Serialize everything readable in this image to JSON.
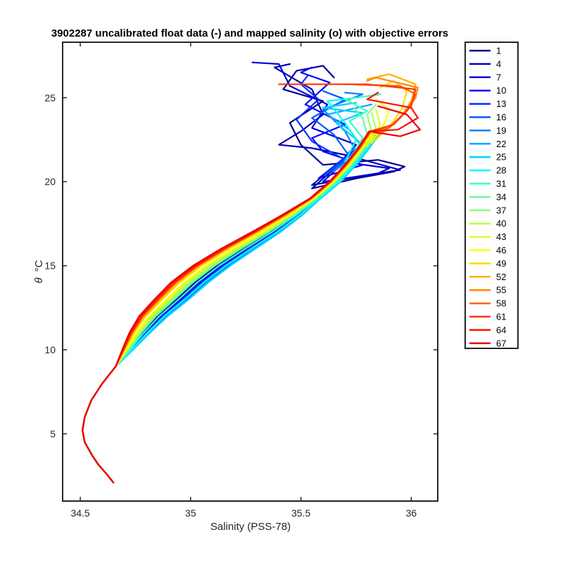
{
  "chart_data": {
    "type": "line",
    "title": "3902287 uncalibrated float data (-) and mapped salinity (o) with objective errors",
    "xlabel": "Salinity (PSS-78)",
    "ylabel_symbol": "θ",
    "ylabel_unit": "°C",
    "xlim": [
      34.42,
      36.12
    ],
    "ylim": [
      1.0,
      28.3
    ],
    "xticks": [
      34.5,
      35,
      35.5,
      36
    ],
    "xtick_labels": [
      "34.5",
      "35",
      "35.5",
      "36"
    ],
    "yticks": [
      5,
      10,
      15,
      20,
      25
    ],
    "ytick_labels": [
      "5",
      "10",
      "15",
      "20",
      "25"
    ],
    "grid": false,
    "legend_position": "outside-right",
    "legend": [
      "1",
      "4",
      "7",
      "10",
      "13",
      "16",
      "19",
      "22",
      "25",
      "28",
      "31",
      "34",
      "37",
      "40",
      "43",
      "46",
      "49",
      "52",
      "55",
      "58",
      "61",
      "64",
      "67"
    ],
    "colors": [
      "#00008f",
      "#0000b3",
      "#0000db",
      "#0005ff",
      "#0030ff",
      "#0058ff",
      "#0080ff",
      "#00a8ff",
      "#00d0ff",
      "#0ff8f8",
      "#38ffc8",
      "#60ff9f",
      "#88ff78",
      "#b0ff50",
      "#d8ff28",
      "#ffff00",
      "#ffd800",
      "#ffb000",
      "#ff8800",
      "#ff6000",
      "#ff3800",
      "#ff1000",
      "#ea0000"
    ],
    "common_profile": [
      [
        34.65,
        2.1
      ],
      [
        34.62,
        2.6
      ],
      [
        34.58,
        3.2
      ],
      [
        34.55,
        3.8
      ],
      [
        34.52,
        4.5
      ],
      [
        34.51,
        5.2
      ],
      [
        34.52,
        6.0
      ],
      [
        34.55,
        7.0
      ],
      [
        34.6,
        8.0
      ],
      [
        34.66,
        9.0
      ],
      [
        34.71,
        10.0
      ],
      [
        34.76,
        11.0
      ],
      [
        34.82,
        12.0
      ],
      [
        34.9,
        13.0
      ],
      [
        34.98,
        14.0
      ],
      [
        35.08,
        15.0
      ],
      [
        35.2,
        16.0
      ],
      [
        35.33,
        17.0
      ],
      [
        35.45,
        18.0
      ],
      [
        35.56,
        19.0
      ],
      [
        35.65,
        20.0
      ],
      [
        35.72,
        21.0
      ],
      [
        35.78,
        22.0
      ],
      [
        35.83,
        23.0
      ]
    ],
    "series": [
      {
        "name": "1",
        "thermocline_offset": 0.04,
        "top": [
          [
            35.55,
            19.6
          ],
          [
            35.75,
            20.2
          ],
          [
            35.92,
            20.6
          ],
          [
            35.97,
            20.9
          ],
          [
            35.85,
            21.3
          ],
          [
            35.6,
            21.0
          ],
          [
            35.5,
            22.2
          ],
          [
            35.45,
            23.5
          ],
          [
            35.6,
            24.8
          ],
          [
            35.42,
            25.5
          ],
          [
            35.48,
            26.6
          ],
          [
            35.6,
            26.9
          ],
          [
            35.65,
            26.2
          ]
        ]
      },
      {
        "name": "4",
        "thermocline_offset": 0.05,
        "top": [
          [
            35.55,
            19.8
          ],
          [
            35.8,
            20.4
          ],
          [
            35.95,
            20.7
          ],
          [
            35.7,
            21.6
          ],
          [
            35.55,
            22.0
          ],
          [
            35.4,
            22.2
          ],
          [
            35.5,
            23.0
          ],
          [
            35.6,
            24.0
          ],
          [
            35.55,
            25.5
          ],
          [
            35.38,
            26.8
          ],
          [
            35.45,
            27.0
          ]
        ]
      },
      {
        "name": "7",
        "thermocline_offset": 0.05,
        "top": [
          [
            35.6,
            20.0
          ],
          [
            35.85,
            20.5
          ],
          [
            35.9,
            20.8
          ],
          [
            35.68,
            21.2
          ],
          [
            35.75,
            22.2
          ],
          [
            35.55,
            23.2
          ],
          [
            35.62,
            24.6
          ],
          [
            35.45,
            25.7
          ],
          [
            35.4,
            27.0
          ],
          [
            35.28,
            27.1
          ]
        ]
      },
      {
        "name": "10",
        "thermocline_offset": 0.06,
        "top": [
          [
            35.58,
            20.2
          ],
          [
            35.78,
            21.0
          ],
          [
            35.6,
            21.8
          ],
          [
            35.55,
            22.6
          ],
          [
            35.7,
            23.4
          ],
          [
            35.52,
            24.6
          ],
          [
            35.63,
            25.9
          ],
          [
            35.5,
            26.5
          ],
          [
            35.55,
            26.8
          ]
        ]
      },
      {
        "name": "13",
        "thermocline_offset": 0.07,
        "top": [
          [
            35.6,
            20.4
          ],
          [
            35.7,
            21.3
          ],
          [
            35.55,
            22.4
          ],
          [
            35.48,
            23.7
          ],
          [
            35.58,
            24.9
          ],
          [
            35.5,
            25.8
          ],
          [
            35.53,
            26.3
          ]
        ]
      },
      {
        "name": "16",
        "thermocline_offset": 0.08,
        "top": [
          [
            35.62,
            20.5
          ],
          [
            35.72,
            21.5
          ],
          [
            35.65,
            22.8
          ],
          [
            35.55,
            23.8
          ],
          [
            35.7,
            24.9
          ],
          [
            35.6,
            25.4
          ]
        ]
      },
      {
        "name": "19",
        "thermocline_offset": 0.09,
        "top": [
          [
            35.65,
            20.6
          ],
          [
            35.75,
            21.8
          ],
          [
            35.7,
            23.0
          ],
          [
            35.6,
            24.3
          ],
          [
            35.78,
            25.2
          ],
          [
            35.7,
            25.3
          ]
        ]
      },
      {
        "name": "22",
        "thermocline_offset": 0.1,
        "top": [
          [
            35.68,
            20.8
          ],
          [
            35.78,
            22.0
          ],
          [
            35.72,
            23.1
          ],
          [
            35.62,
            24.0
          ],
          [
            35.82,
            24.6
          ]
        ]
      },
      {
        "name": "25",
        "thermocline_offset": 0.1,
        "top": [
          [
            35.7,
            21.0
          ],
          [
            35.77,
            22.3
          ],
          [
            35.66,
            23.5
          ],
          [
            35.78,
            24.1
          ],
          [
            35.6,
            24.4
          ],
          [
            35.75,
            24.7
          ]
        ]
      },
      {
        "name": "28",
        "thermocline_offset": 0.08,
        "top": [
          [
            35.7,
            21.2
          ],
          [
            35.75,
            22.5
          ],
          [
            35.7,
            23.5
          ],
          [
            35.62,
            24.8
          ],
          [
            35.75,
            25.0
          ]
        ]
      },
      {
        "name": "31",
        "thermocline_offset": 0.05,
        "top": [
          [
            35.72,
            21.3
          ],
          [
            35.78,
            22.6
          ],
          [
            35.72,
            23.6
          ],
          [
            35.8,
            24.2
          ],
          [
            35.7,
            24.9
          ],
          [
            35.86,
            25.2
          ]
        ]
      },
      {
        "name": "34",
        "thermocline_offset": 0.03,
        "top": [
          [
            35.74,
            21.5
          ],
          [
            35.8,
            22.8
          ],
          [
            35.78,
            23.8
          ],
          [
            35.74,
            24.4
          ]
        ]
      },
      {
        "name": "37",
        "thermocline_offset": 0.02,
        "top": [
          [
            35.75,
            21.7
          ],
          [
            35.82,
            23.0
          ],
          [
            35.8,
            24.0
          ],
          [
            35.84,
            24.6
          ]
        ]
      },
      {
        "name": "40",
        "thermocline_offset": 0.01,
        "top": [
          [
            35.77,
            21.9
          ],
          [
            35.84,
            23.2
          ],
          [
            35.82,
            24.1
          ]
        ]
      },
      {
        "name": "43",
        "thermocline_offset": 0.0,
        "top": [
          [
            35.8,
            22.1
          ],
          [
            35.86,
            23.4
          ],
          [
            35.84,
            24.3
          ]
        ]
      },
      {
        "name": "46",
        "thermocline_offset": -0.01,
        "top": [
          [
            35.82,
            22.3
          ],
          [
            35.88,
            23.5
          ],
          [
            35.9,
            24.3
          ],
          [
            35.84,
            24.9
          ]
        ]
      },
      {
        "name": "49",
        "thermocline_offset": -0.03,
        "top": [
          [
            35.84,
            22.5
          ],
          [
            35.92,
            23.6
          ],
          [
            35.96,
            24.4
          ],
          [
            35.98,
            25.4
          ],
          [
            35.92,
            26.0
          ],
          [
            35.86,
            25.6
          ]
        ]
      },
      {
        "name": "52",
        "thermocline_offset": -0.04,
        "top": [
          [
            35.86,
            22.8
          ],
          [
            35.95,
            23.8
          ],
          [
            36.0,
            24.8
          ],
          [
            36.02,
            25.8
          ],
          [
            35.9,
            26.4
          ],
          [
            35.8,
            26.1
          ]
        ]
      },
      {
        "name": "55",
        "thermocline_offset": -0.05,
        "top": [
          [
            35.88,
            23.0
          ],
          [
            35.97,
            24.1
          ],
          [
            36.02,
            25.0
          ],
          [
            36.03,
            25.6
          ],
          [
            35.84,
            26.2
          ],
          [
            35.8,
            26.0
          ]
        ]
      },
      {
        "name": "58",
        "thermocline_offset": -0.05,
        "top": [
          [
            35.9,
            23.2
          ],
          [
            35.98,
            24.2
          ],
          [
            36.02,
            25.2
          ],
          [
            35.95,
            25.7
          ],
          [
            35.7,
            25.8
          ]
        ]
      },
      {
        "name": "61",
        "thermocline_offset": -0.05,
        "top": [
          [
            35.92,
            23.4
          ],
          [
            36.0,
            24.5
          ],
          [
            36.02,
            25.5
          ],
          [
            35.8,
            25.8
          ],
          [
            35.4,
            25.8
          ]
        ]
      },
      {
        "name": "64",
        "thermocline_offset": -0.06,
        "top": [
          [
            35.94,
            23.1
          ],
          [
            36.03,
            23.8
          ],
          [
            36.0,
            24.4
          ],
          [
            35.8,
            24.9
          ],
          [
            35.85,
            25.3
          ]
        ]
      },
      {
        "name": "67",
        "thermocline_offset": -0.07,
        "top": [
          [
            35.95,
            22.7
          ],
          [
            36.04,
            23.1
          ],
          [
            35.98,
            24.0
          ],
          [
            35.85,
            24.5
          ]
        ]
      }
    ]
  }
}
